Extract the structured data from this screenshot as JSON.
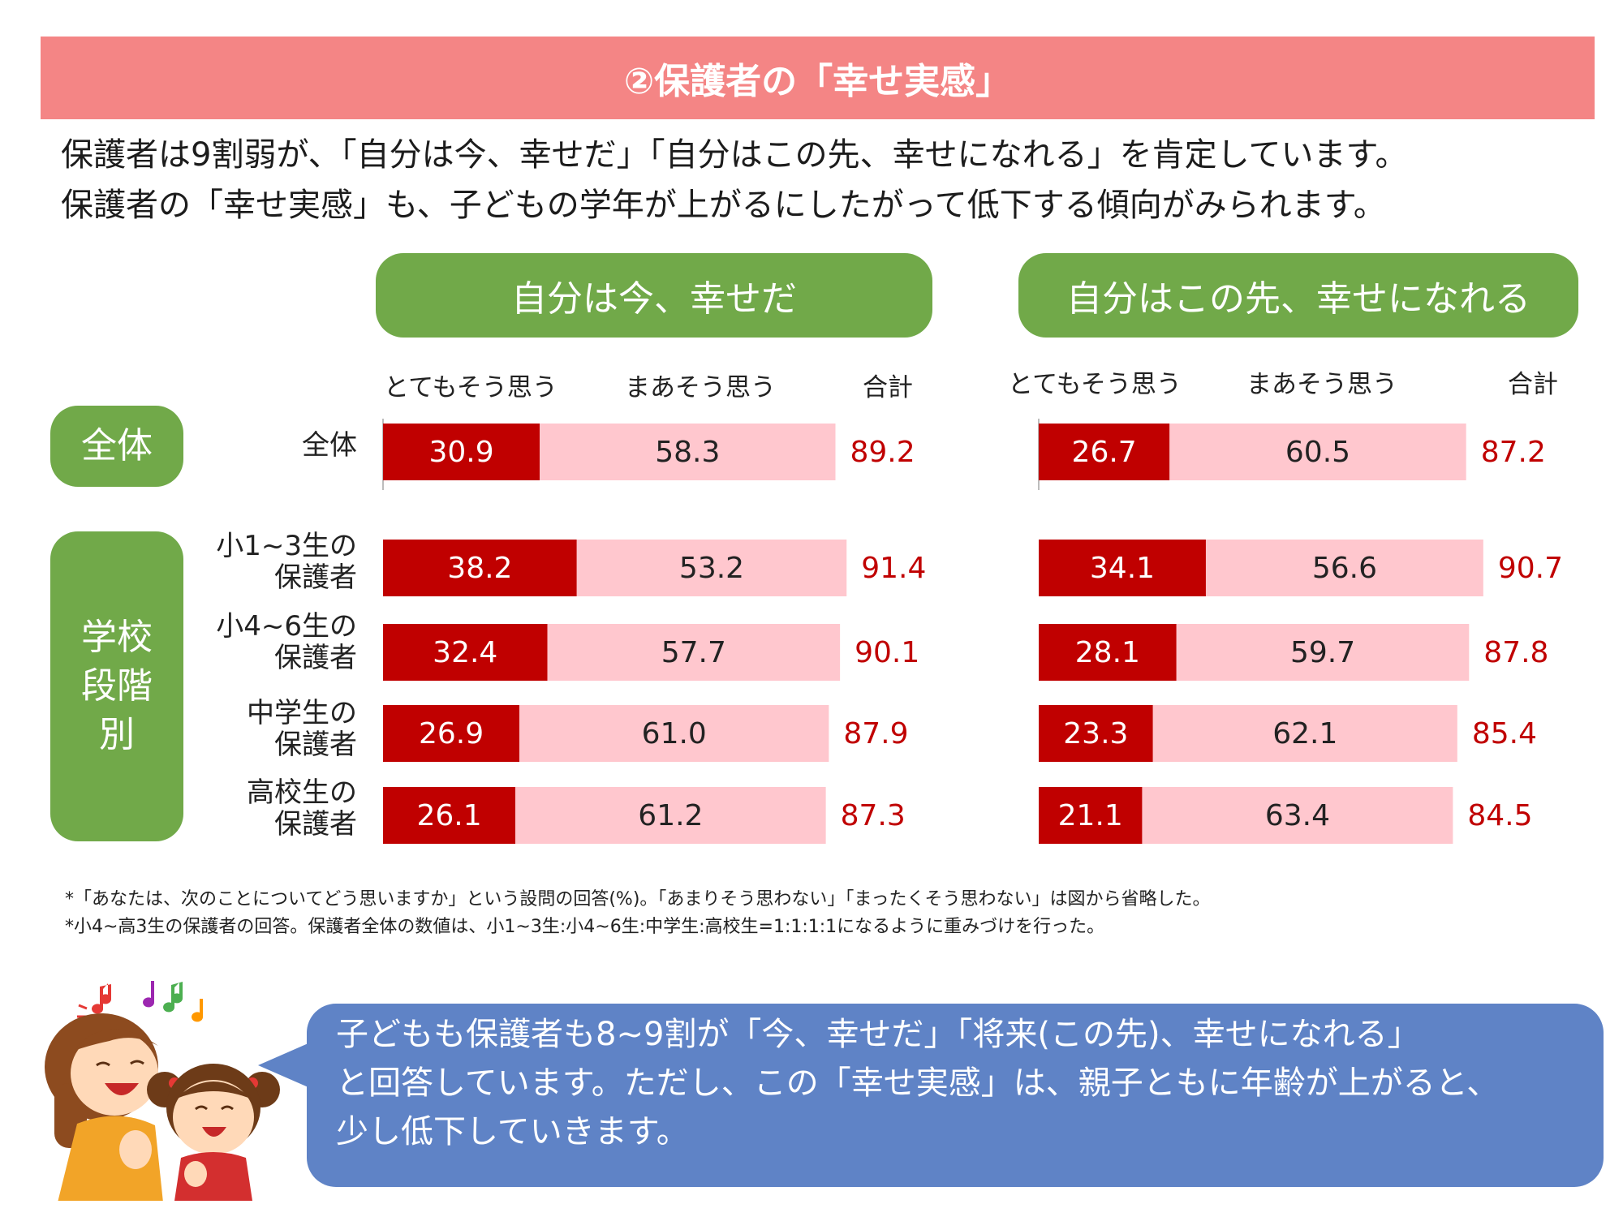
{
  "banner": {
    "title": "②保護者の「幸せ実感」"
  },
  "intro": {
    "line1": "保護者は9割弱が、「自分は今、幸せだ」「自分はこの先、幸せになれる」を肯定しています。",
    "line2": "保護者の「幸せ実感」も、子どもの学年が上がるにしたがって低下する傾向がみられます。"
  },
  "columns": {
    "very": "とてもそう思う",
    "somewhat": "まあそう思う",
    "total": "合計"
  },
  "groups": {
    "overall": "全体",
    "school": "学校\n段階\n別"
  },
  "rows": [
    {
      "label": "全体"
    },
    {
      "label": "小1~3生の\n保護者"
    },
    {
      "label": "小4~6生の\n保護者"
    },
    {
      "label": "中学生の\n保護者"
    },
    {
      "label": "高校生の\n保護者"
    }
  ],
  "colors": {
    "very": "#c00000",
    "somewhat": "#ffc7ce",
    "total_text": "#c00000",
    "green": "#71a949",
    "banner": "#f48585",
    "bubble": "#5f83c6"
  },
  "chart_data": [
    {
      "type": "bar",
      "stacked": true,
      "orientation": "horizontal",
      "title": "自分は今、幸せだ",
      "categories": [
        "全体",
        "小1~3生の保護者",
        "小4~6生の保護者",
        "中学生の保護者",
        "高校生の保護者"
      ],
      "series": [
        {
          "name": "とてもそう思う",
          "values": [
            30.9,
            38.2,
            32.4,
            26.9,
            26.1
          ]
        },
        {
          "name": "まあそう思う",
          "values": [
            58.3,
            53.2,
            57.7,
            61.0,
            61.2
          ]
        }
      ],
      "series_labels": [
        [
          "30.9",
          "38.2",
          "32.4",
          "26.9",
          "26.1"
        ],
        [
          "58.3",
          "53.2",
          "57.7",
          "61.0",
          "61.2"
        ]
      ],
      "totals": [
        89.2,
        91.4,
        90.1,
        87.9,
        87.3
      ],
      "total_labels": [
        "89.2",
        "91.4",
        "90.1",
        "87.9",
        "87.3"
      ],
      "total_header": "合計"
    },
    {
      "type": "bar",
      "stacked": true,
      "orientation": "horizontal",
      "title": "自分はこの先、幸せになれる",
      "categories": [
        "全体",
        "小1~3生の保護者",
        "小4~6生の保護者",
        "中学生の保護者",
        "高校生の保護者"
      ],
      "series": [
        {
          "name": "とてもそう思う",
          "values": [
            26.7,
            34.1,
            28.1,
            23.3,
            21.1
          ]
        },
        {
          "name": "まあそう思う",
          "values": [
            60.5,
            56.6,
            59.7,
            62.1,
            63.4
          ]
        }
      ],
      "series_labels": [
        [
          "26.7",
          "34.1",
          "28.1",
          "23.3",
          "21.1"
        ],
        [
          "60.5",
          "56.6",
          "59.7",
          "62.1",
          "63.4"
        ]
      ],
      "totals": [
        87.2,
        90.7,
        87.8,
        85.4,
        84.5
      ],
      "total_labels": [
        "87.2",
        "90.7",
        "87.8",
        "85.4",
        "84.5"
      ],
      "total_header": "合計"
    }
  ],
  "notes": [
    "*「あなたは、次のことについてどう思いますか」という設問の回答(%)。「あまりそう思わない」「まったくそう思わない」は図から省略した。",
    "*小4~高3生の保護者の回答。保護者全体の数値は、小1~3生:小4~6生:中学生:高校生=1:1:1:1になるように重みづけを行った。"
  ],
  "bubble": {
    "line1": "子どもも保護者も8~9割が「今、幸せだ」「将来(この先)、幸せになれる」",
    "line2": "と回答しています。ただし、この「幸せ実感」は、親子ともに年齢が上がると、",
    "line3": "少し低下していきます。"
  },
  "illustration": {
    "icon": "mother-and-daughter-singing-illustration"
  }
}
